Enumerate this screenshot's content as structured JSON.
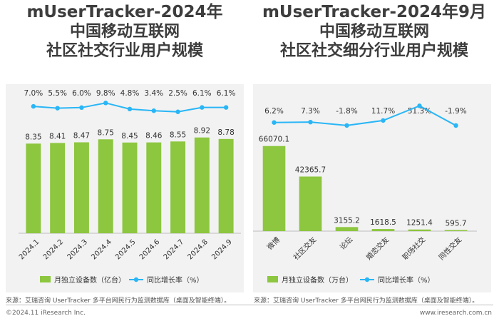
{
  "left_title": {
    "line1": "mUserTracker-2024年",
    "line2": "中国移动互联网",
    "line3": "社区社交行业用户规模"
  },
  "right_title": {
    "line1": "mUserTracker-2024年9月",
    "line2": "中国移动互联网",
    "line3": "社区社交细分行业用户规模"
  },
  "colors": {
    "bar": "#8dc63f",
    "line": "#29b6f6",
    "background": "#f2f2f2"
  },
  "chart_data": [
    {
      "type": "bar",
      "categories": [
        "2024.1",
        "2024.2",
        "2024.3",
        "2024.4",
        "2024.5",
        "2024.6",
        "2024.7",
        "2024.8",
        "2024.9"
      ],
      "series": [
        {
          "name": "月独立设备数（亿台）",
          "type": "bar",
          "values": [
            8.35,
            8.41,
            8.47,
            8.75,
            8.45,
            8.46,
            8.55,
            8.92,
            8.78
          ],
          "labels": [
            "8.35",
            "8.41",
            "8.47",
            "8.75",
            "8.45",
            "8.46",
            "8.55",
            "8.92",
            "8.78"
          ]
        },
        {
          "name": "同比增长率（%）",
          "type": "line",
          "values": [
            7.0,
            5.5,
            6.0,
            9.8,
            4.8,
            3.4,
            2.5,
            6.1,
            6.1
          ],
          "labels": [
            "7.0%",
            "5.5%",
            "6.0%",
            "9.8%",
            "4.8%",
            "3.4%",
            "2.5%",
            "6.1%",
            "6.1%"
          ]
        }
      ],
      "legend": "bottom",
      "grid": false
    },
    {
      "type": "bar",
      "categories": [
        "微博",
        "社区交友",
        "论坛",
        "婚恋交友",
        "职场社交",
        "同性交友"
      ],
      "series": [
        {
          "name": "月独立设备数（万台）",
          "type": "bar",
          "values": [
            66070.1,
            42365.7,
            3155.2,
            1618.5,
            1251.4,
            595.7
          ],
          "labels": [
            "66070.1",
            "42365.7",
            "3155.2",
            "1618.5",
            "1251.4",
            "595.7"
          ]
        },
        {
          "name": "同比增长率（%）",
          "type": "line",
          "values": [
            6.2,
            7.3,
            -1.8,
            11.7,
            51.3,
            -1.9
          ],
          "labels": [
            "6.2%",
            "7.3%",
            "-1.8%",
            "11.7%",
            "51.3%",
            "-1.9%"
          ]
        }
      ],
      "legend": "bottom",
      "grid": false
    }
  ],
  "source_left": "来源：艾瑞咨询 UserTracker 多平台网民行为监测数据库（桌面及智能终端）。",
  "source_right": "来源：艾瑞咨询 UserTracker 多平台网民行为监测数据库（桌面及智能终端）。",
  "footer_left": "©2024.11 iResearch Inc.",
  "footer_right": "www.iresearch.com.cn"
}
